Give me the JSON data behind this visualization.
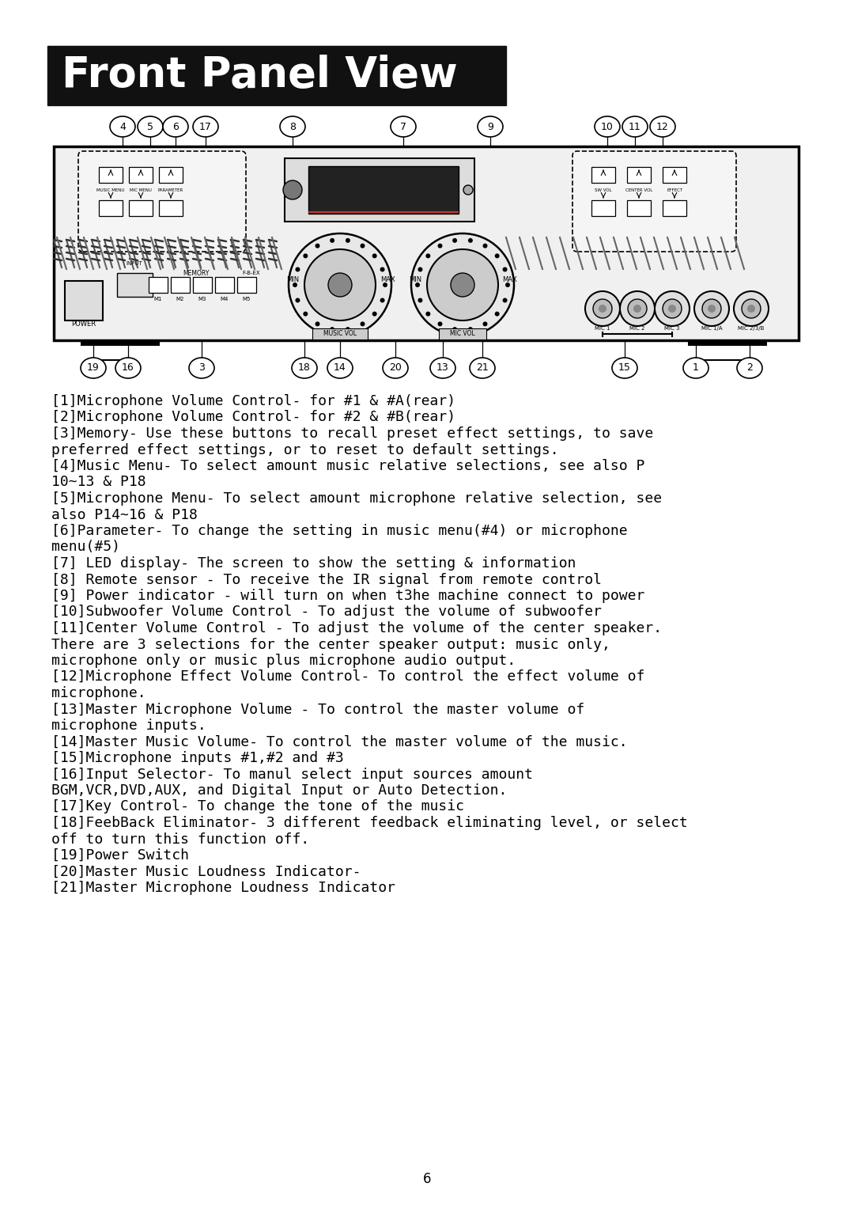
{
  "title": "Front Panel View",
  "title_bg": "#111111",
  "title_color": "#ffffff",
  "bg_color": "#ffffff",
  "text_color": "#000000",
  "page_number": "6",
  "descriptions": [
    "[1]Microphone Volume Control- for #1 & #A(rear)",
    "[2]Microphone Volume Control- for #2 & #B(rear)",
    "[3]Memory- Use these buttons to recall preset effect settings, to save\npreferred effect settings, or to reset to default settings.",
    "[4]Music Menu- To select amount music relative selections, see also P\n10~13 & P18",
    "[5]Microphone Menu- To select amount microphone relative selection, see\nalso P14~16 & P18",
    "[6]Parameter- To change the setting in music menu(#4) or microphone\nmenu(#5)",
    "[7] LED display- The screen to show the setting & information",
    "[8] Remote sensor - To receive the IR signal from remote control",
    "[9] Power indicator - will turn on when t3he machine connect to power",
    "[10]Subwoofer Volume Control - To adjust the volume of subwoofer",
    "[11]Center Volume Control - To adjust the volume of the center speaker.\nThere are 3 selections for the center speaker output: music only,\nmicrophone only or music plus microphone audio output.",
    "[12]Microphone Effect Volume Control- To control the effect volume of\nmicrophone.",
    "[13]Master Microphone Volume - To control the master volume of\nmicrophone inputs.",
    "[14]Master Music Volume- To control the master volume of the music.",
    "[15]Microphone inputs #1,#2 and #3",
    "[16]Input Selector- To manul select input sources amount\nBGM,VCR,DVD,AUX, and Digital Input or Auto Detection.",
    "[17]Key Control- To change the tone of the music",
    "[18]FeebBack Eliminator- 3 different feedback eliminating level, or select\noff to turn this function off.",
    "[19]Power Switch",
    "[20]Master Music Loudness Indicator-",
    "[21]Master Microphone Loudness Indicator"
  ]
}
